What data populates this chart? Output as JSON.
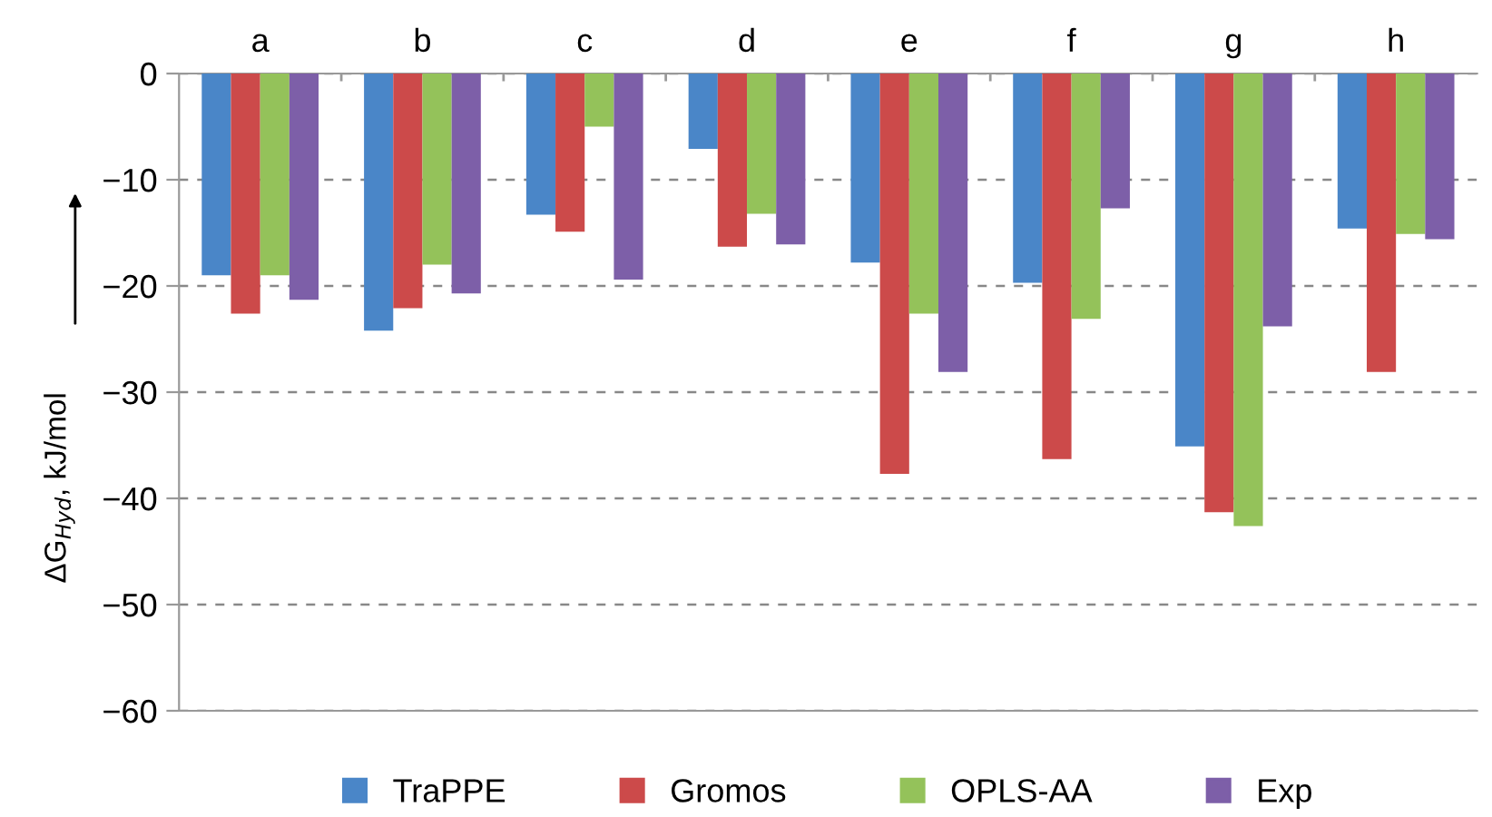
{
  "chart_data": {
    "type": "bar",
    "ylabel": "ΔG$_{Hyd}$, kJ/mol",
    "categories": [
      "a",
      "b",
      "c",
      "d",
      "e",
      "f",
      "g",
      "h"
    ],
    "series": [
      {
        "name": "TraPPE",
        "color": "#4a86c8",
        "values": [
          -19.0,
          -24.2,
          -13.3,
          -7.1,
          -17.8,
          -19.7,
          -35.1,
          -14.6
        ]
      },
      {
        "name": "Gromos",
        "color": "#cc4a4a",
        "values": [
          -22.6,
          -22.1,
          -14.9,
          -16.3,
          -37.7,
          -36.3,
          -41.3,
          -28.1
        ]
      },
      {
        "name": "OPLS-AA",
        "color": "#94c25a",
        "values": [
          -19.0,
          -18.0,
          -5.0,
          -13.2,
          -22.6,
          -23.1,
          -42.6,
          -15.1
        ]
      },
      {
        "name": "Exp",
        "color": "#7d5fa8",
        "values": [
          -21.3,
          -20.7,
          -19.4,
          -16.1,
          -28.1,
          -12.7,
          -23.8,
          -15.6
        ]
      }
    ],
    "ylim": [
      -60,
      0
    ],
    "yticks": [
      -60,
      -50,
      -40,
      -30,
      -20,
      -10,
      0
    ],
    "grid": "y",
    "legend": "bottom"
  }
}
